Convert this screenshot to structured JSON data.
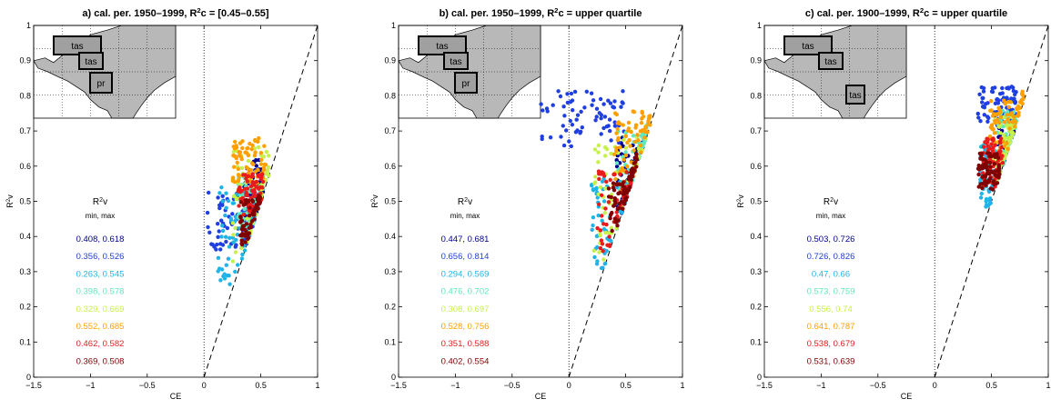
{
  "figure": {
    "colors": [
      "#00008f",
      "#1f3fe0",
      "#1fb4e8",
      "#5fe8c0",
      "#c8f04a",
      "#ffa000",
      "#e81c1c",
      "#800000"
    ],
    "legend_header": {
      "title_base": "R",
      "title_sup": "2",
      "title_rest": "v",
      "subtitle": "min, max"
    },
    "inset_labels": [
      "tas",
      "tas",
      "pr"
    ],
    "inset_labels_c": [
      "tas",
      "tas",
      "tas"
    ]
  },
  "chart_data": [
    {
      "type": "scatter",
      "panel_id": "a",
      "title": {
        "pre": "a) cal. per. 1950–1999, R",
        "sup": "2",
        "post": "c = [0.45–0.55]"
      },
      "xlabel": "CE",
      "ylabel": {
        "base": "R",
        "sup": "2",
        "post": "v"
      },
      "xlim": [
        -1.5,
        1
      ],
      "ylim": [
        0,
        1
      ],
      "xticks": [
        "−1.5",
        "−1",
        "−0.5",
        "0",
        "0.5",
        "1"
      ],
      "yticks": [
        "0",
        "0.1",
        "0.2",
        "0.3",
        "0.4",
        "0.5",
        "0.6",
        "0.7",
        "0.8",
        "0.9",
        "1"
      ],
      "reference_line": "1:1 dashed",
      "inset": "North America map",
      "legend_ranges": [
        "0.408, 0.618",
        "0.356, 0.526",
        "0.263, 0.545",
        "0.398, 0.578",
        "0.329, 0.669",
        "0.552, 0.685",
        "0.462, 0.582",
        "0.369, 0.508"
      ],
      "series": [
        {
          "color_index": 0,
          "ce_range": [
            0.35,
            0.52
          ],
          "r2v_range": [
            0.408,
            0.618
          ]
        },
        {
          "color_index": 1,
          "ce_range": [
            0.02,
            0.48
          ],
          "r2v_range": [
            0.356,
            0.526
          ]
        },
        {
          "color_index": 2,
          "ce_range": [
            0.12,
            0.45
          ],
          "r2v_range": [
            0.263,
            0.545
          ]
        },
        {
          "color_index": 3,
          "ce_range": [
            0.3,
            0.52
          ],
          "r2v_range": [
            0.398,
            0.578
          ]
        },
        {
          "color_index": 4,
          "ce_range": [
            0.25,
            0.58
          ],
          "r2v_range": [
            0.329,
            0.669
          ]
        },
        {
          "color_index": 5,
          "ce_range": [
            0.25,
            0.55
          ],
          "r2v_range": [
            0.552,
            0.685
          ]
        },
        {
          "color_index": 6,
          "ce_range": [
            0.3,
            0.52
          ],
          "r2v_range": [
            0.462,
            0.582
          ]
        },
        {
          "color_index": 7,
          "ce_range": [
            0.32,
            0.5
          ],
          "r2v_range": [
            0.369,
            0.508
          ]
        }
      ]
    },
    {
      "type": "scatter",
      "panel_id": "b",
      "title": {
        "pre": "b) cal. per. 1950–1999, R",
        "sup": "2",
        "post": "c = upper quartile"
      },
      "xlabel": "CE",
      "ylabel": {
        "base": "R",
        "sup": "2",
        "post": "v"
      },
      "xlim": [
        -1.5,
        1
      ],
      "ylim": [
        0,
        1
      ],
      "xticks": [
        "−1.5",
        "−1",
        "−0.5",
        "0",
        "0.5",
        "1"
      ],
      "yticks": [
        "0",
        "0.1",
        "0.2",
        "0.3",
        "0.4",
        "0.5",
        "0.6",
        "0.7",
        "0.8",
        "0.9",
        "1"
      ],
      "reference_line": "1:1 dashed",
      "inset": "North America map",
      "legend_ranges": [
        "0.447, 0.681",
        "0.656, 0.814",
        "0.294, 0.569",
        "0.476, 0.702",
        "0.308, 0.697",
        "0.528, 0.756",
        "0.351, 0.588",
        "0.402, 0.554"
      ],
      "series": [
        {
          "color_index": 0,
          "ce_range": [
            0.42,
            0.68
          ],
          "r2v_range": [
            0.447,
            0.681
          ]
        },
        {
          "color_index": 1,
          "ce_range": [
            -0.25,
            0.55
          ],
          "r2v_range": [
            0.656,
            0.814
          ]
        },
        {
          "color_index": 2,
          "ce_range": [
            0.2,
            0.55
          ],
          "r2v_range": [
            0.294,
            0.569
          ]
        },
        {
          "color_index": 3,
          "ce_range": [
            0.42,
            0.7
          ],
          "r2v_range": [
            0.476,
            0.702
          ]
        },
        {
          "color_index": 4,
          "ce_range": [
            0.22,
            0.68
          ],
          "r2v_range": [
            0.308,
            0.697
          ]
        },
        {
          "color_index": 5,
          "ce_range": [
            0.4,
            0.72
          ],
          "r2v_range": [
            0.528,
            0.756
          ]
        },
        {
          "color_index": 6,
          "ce_range": [
            0.25,
            0.58
          ],
          "r2v_range": [
            0.351,
            0.588
          ]
        },
        {
          "color_index": 7,
          "ce_range": [
            0.35,
            0.6
          ],
          "r2v_range": [
            0.402,
            0.554
          ]
        }
      ]
    },
    {
      "type": "scatter",
      "panel_id": "c",
      "title": {
        "pre": "c) cal. per. 1900–1999, R",
        "sup": "2",
        "post": "c = upper quartile"
      },
      "xlabel": "CE",
      "ylabel": {
        "base": "R",
        "sup": "2",
        "post": "v"
      },
      "xlim": [
        -1.5,
        1
      ],
      "ylim": [
        0,
        1
      ],
      "xticks": [
        "−1.5",
        "−1",
        "−0.5",
        "0",
        "0.5",
        "1"
      ],
      "yticks": [
        "0",
        "0.1",
        "0.2",
        "0.3",
        "0.4",
        "0.5",
        "0.6",
        "0.7",
        "0.8",
        "0.9",
        "1"
      ],
      "reference_line": "1:1 dashed",
      "inset": "North America map",
      "legend_ranges": [
        "0.503, 0.726",
        "0.726, 0.826",
        "0.47, 0.66",
        "0.573, 0.759",
        "0.556, 0.74",
        "0.641, 0.787",
        "0.538, 0.679",
        "0.531, 0.639"
      ],
      "series": [
        {
          "color_index": 0,
          "ce_range": [
            0.55,
            0.7
          ],
          "r2v_range": [
            0.503,
            0.726
          ]
        },
        {
          "color_index": 1,
          "ce_range": [
            0.38,
            0.72
          ],
          "r2v_range": [
            0.726,
            0.826
          ]
        },
        {
          "color_index": 2,
          "ce_range": [
            0.4,
            0.55
          ],
          "r2v_range": [
            0.47,
            0.66
          ]
        },
        {
          "color_index": 3,
          "ce_range": [
            0.55,
            0.72
          ],
          "r2v_range": [
            0.573,
            0.759
          ]
        },
        {
          "color_index": 4,
          "ce_range": [
            0.5,
            0.7
          ],
          "r2v_range": [
            0.556,
            0.74
          ]
        },
        {
          "color_index": 5,
          "ce_range": [
            0.48,
            0.78
          ],
          "r2v_range": [
            0.641,
            0.787
          ]
        },
        {
          "color_index": 6,
          "ce_range": [
            0.42,
            0.6
          ],
          "r2v_range": [
            0.538,
            0.679
          ]
        },
        {
          "color_index": 7,
          "ce_range": [
            0.38,
            0.58
          ],
          "r2v_range": [
            0.531,
            0.639
          ]
        }
      ]
    }
  ]
}
